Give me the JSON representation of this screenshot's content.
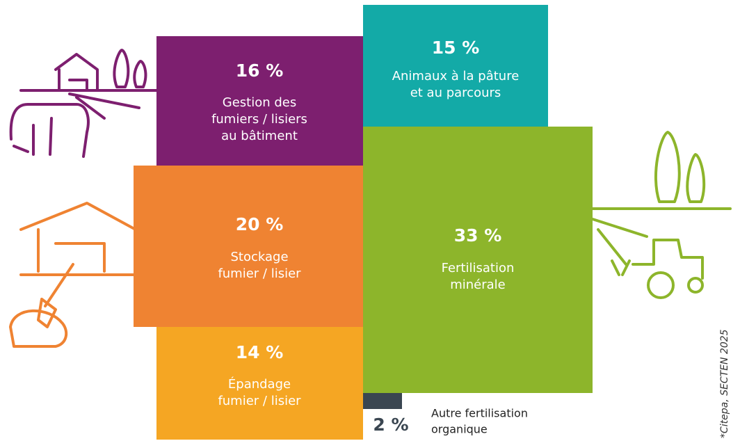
{
  "blocks": [
    {
      "value_label": "16 %",
      "lines": [
        "Gestion des",
        "fumiers / lisiers",
        "au bâtiment"
      ],
      "color": "#7d1f6f"
    },
    {
      "value_label": "15 %",
      "lines": [
        "Animaux à la pâture",
        "et au parcours"
      ],
      "color": "#13aaa7"
    },
    {
      "value_label": "33 %",
      "lines": [
        "Fertilisation",
        "minérale"
      ],
      "color": "#8db52b"
    },
    {
      "value_label": "20 %",
      "lines": [
        "Stockage",
        "fumier / lisier"
      ],
      "color": "#ef8332"
    },
    {
      "value_label": "14 %",
      "lines": [
        "Épandage",
        "fumier / lisier"
      ],
      "color": "#f5a623"
    },
    {
      "value_label": "2 %",
      "lines": [
        "Autre fertilisation",
        "organique"
      ],
      "color": "#3a4651"
    }
  ],
  "source": "*Citepa, SECTEN 2025"
}
